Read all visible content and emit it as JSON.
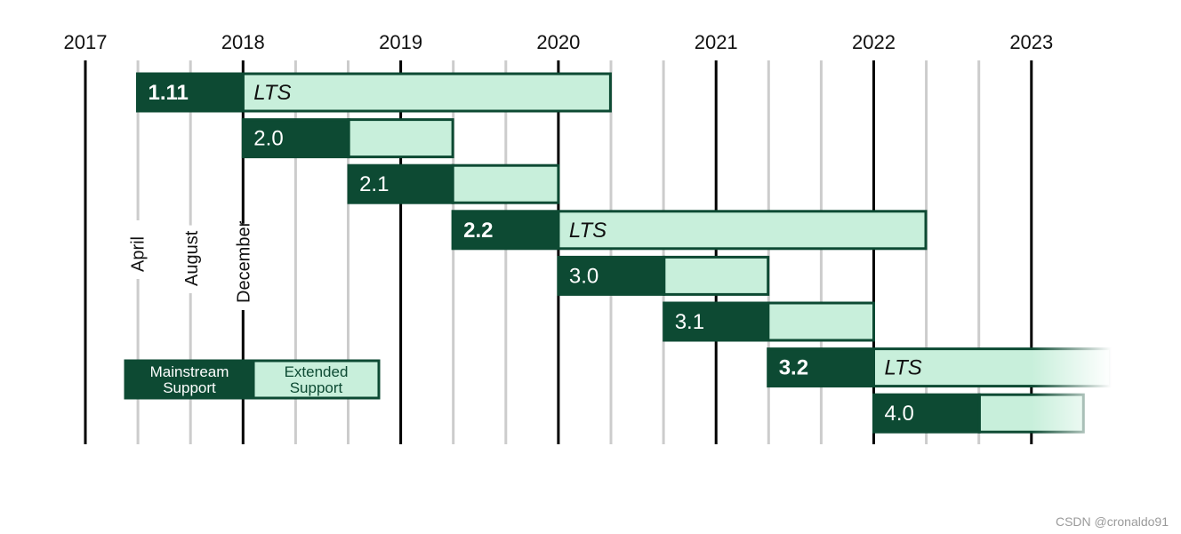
{
  "chart_data": {
    "type": "timeline",
    "title": "",
    "x_unit": "year",
    "xlim": [
      2017,
      2023.33
    ],
    "year_ticks": [
      "2017",
      "2018",
      "2019",
      "2020",
      "2021",
      "2022",
      "2023"
    ],
    "month_markers": [
      {
        "label": "April",
        "x": 2017.33
      },
      {
        "label": "August",
        "x": 2017.67
      },
      {
        "label": "December",
        "x": 2018.0
      }
    ],
    "series": [
      {
        "name": "1.11",
        "mainstream_start": 2017.33,
        "mainstream_end": 2018.0,
        "extended_end": 2020.33,
        "lts": true,
        "lts_label": "LTS"
      },
      {
        "name": "2.0",
        "mainstream_start": 2018.0,
        "mainstream_end": 2018.67,
        "extended_end": 2019.33,
        "lts": false
      },
      {
        "name": "2.1",
        "mainstream_start": 2018.67,
        "mainstream_end": 2019.33,
        "extended_end": 2020.0,
        "lts": false
      },
      {
        "name": "2.2",
        "mainstream_start": 2019.33,
        "mainstream_end": 2020.0,
        "extended_end": 2022.33,
        "lts": true,
        "lts_label": "LTS"
      },
      {
        "name": "3.0",
        "mainstream_start": 2020.0,
        "mainstream_end": 2020.67,
        "extended_end": 2021.33,
        "lts": false
      },
      {
        "name": "3.1",
        "mainstream_start": 2020.67,
        "mainstream_end": 2021.33,
        "extended_end": 2022.0,
        "lts": false
      },
      {
        "name": "3.2",
        "mainstream_start": 2021.33,
        "mainstream_end": 2022.0,
        "extended_end": 2023.5,
        "lts": true,
        "lts_label": "LTS",
        "fade": true
      },
      {
        "name": "4.0",
        "mainstream_start": 2022.0,
        "mainstream_end": 2022.67,
        "extended_end": 2023.33,
        "lts": false,
        "fade": true
      }
    ],
    "legend": {
      "placement": "bottom-left",
      "mainstream_line1": "Mainstream",
      "mainstream_line2": "Support",
      "extended_line1": "Extended",
      "extended_line2": "Support"
    },
    "colors": {
      "mainstream": "#0d4a33",
      "extended": "#c8efdb",
      "border": "#0d4a33",
      "year_line": "#000000",
      "month_line": "#cccccc"
    }
  },
  "watermark": "CSDN @cronaldo91"
}
